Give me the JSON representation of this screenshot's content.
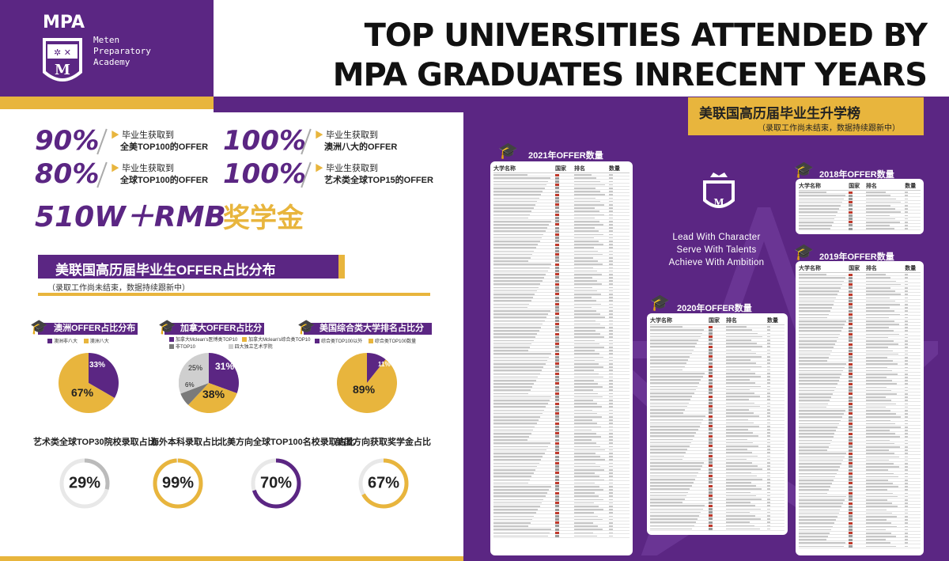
{
  "brand": {
    "logo_text": "MPA",
    "logo_letter": "M",
    "name_lines": [
      "Meten",
      "Preparatory",
      "Academy"
    ]
  },
  "title": {
    "line1": "TOP UNIVERSITIES ATTENDED BY",
    "line2": "MPA GRADUATES INRECENT YEARS"
  },
  "right_banner": {
    "title": "美联国高历届毕业生升学榜",
    "subtitle": "（录取工作尚未结束，数据持续跟新中）"
  },
  "stats": [
    {
      "value": "90%",
      "line1": "毕业生获取到",
      "line2": "全美TOP100的OFFER"
    },
    {
      "value": "100%",
      "line1": "毕业生获取到",
      "line2": "澳洲八大的OFFER"
    },
    {
      "value": "80%",
      "line1": "毕业生获取到",
      "line2": "全球TOP100的OFFER"
    },
    {
      "value": "100%",
      "line1": "毕业生获取到",
      "line2": "艺术类全球TOP15的OFFER"
    }
  ],
  "scholarship": {
    "amount": "510W＋RMB",
    "label": "奖学金"
  },
  "offer_section": {
    "title": "美联国高历届毕业生OFFER占比分布",
    "subtitle": "（录取工作尚未结束，数据持续跟新中）"
  },
  "pies": [
    {
      "title": "澳洲OFFER占比分布",
      "legend": [
        "澳洲非八大",
        "澳洲八大"
      ],
      "labels": [
        "33%",
        "67%"
      ]
    },
    {
      "title": "加拿大OFFER占比分布",
      "legend": [
        "加拿大Mclean's医博类TOP10",
        "加拿大Mclean's综合类TOP10",
        "非TOP10",
        "四大独立艺术学院"
      ],
      "labels": [
        "31%",
        "38%",
        "6%",
        "25%"
      ]
    },
    {
      "title": "美国综合类大学排名占比分布",
      "legend": [
        "综合类TOP100以外",
        "综合类TOP100数量"
      ],
      "labels": [
        "11%",
        "89%"
      ]
    }
  ],
  "rings": [
    {
      "label": "艺术类全球TOP30院校录取占比",
      "value": "29%",
      "fraction": 0.29,
      "color": "#bbbbbb"
    },
    {
      "label": "海外本科录取占比",
      "value": "99%",
      "fraction": 0.99,
      "color": "#e8b53d"
    },
    {
      "label": "北美方向全球TOP100名校录取占比",
      "value": "70%",
      "fraction": 0.7,
      "color": "#5b2683"
    },
    {
      "label": "美国方向获取奖学金占比",
      "value": "67%",
      "fraction": 0.67,
      "color": "#e8b53d"
    }
  ],
  "motto": [
    "Lead With Character",
    "Serve With Talents",
    "Achieve With Ambition"
  ],
  "tables": {
    "t2021": {
      "title": "2021年OFFER数量",
      "headers": [
        "大学名称",
        "国家",
        "排名",
        "数量"
      ]
    },
    "t2020": {
      "title": "2020年OFFER数量",
      "headers": [
        "大学名称",
        "国家",
        "排名",
        "数量"
      ]
    },
    "t2018": {
      "title": "2018年OFFER数量",
      "headers": [
        "大学名称",
        "国家",
        "排名",
        "数量"
      ]
    },
    "t2019": {
      "title": "2019年OFFER数量",
      "headers": [
        "大学名称",
        "国家",
        "排名",
        "数量"
      ]
    }
  },
  "colors": {
    "purple": "#5b2683",
    "gold": "#e8b53d",
    "grey": "#bbbbbb"
  }
}
